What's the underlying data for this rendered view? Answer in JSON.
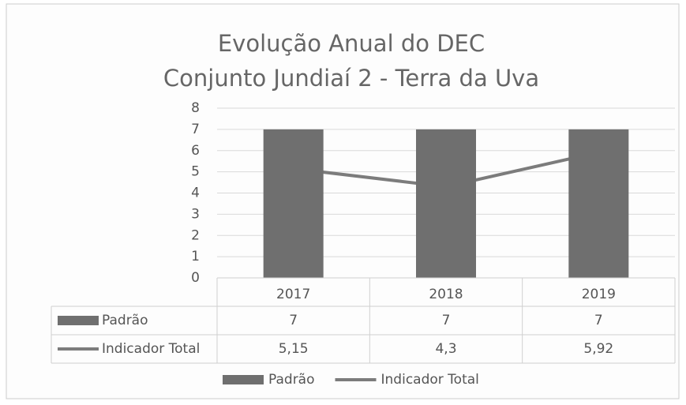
{
  "chart_data": {
    "type": "bar",
    "title": "Evolução Anual do DEC",
    "subtitle": "Conjunto Jundiaí 2 - Terra da Uva",
    "categories": [
      "2017",
      "2018",
      "2019"
    ],
    "series": [
      {
        "name": "Padrão",
        "type": "bar",
        "color": "#6f6f6f",
        "values": [
          7,
          7,
          7
        ]
      },
      {
        "name": "Indicador Total",
        "type": "line",
        "color": "#7c7c7c",
        "values": [
          5.15,
          4.3,
          5.92
        ],
        "value_labels": [
          "5,15",
          "4,3",
          "5,92"
        ]
      }
    ],
    "ylim": [
      0,
      8
    ],
    "yticks": [
      0,
      1,
      2,
      3,
      4,
      5,
      6,
      7,
      8
    ],
    "grid": true,
    "data_table": true,
    "legend": "bottom"
  }
}
